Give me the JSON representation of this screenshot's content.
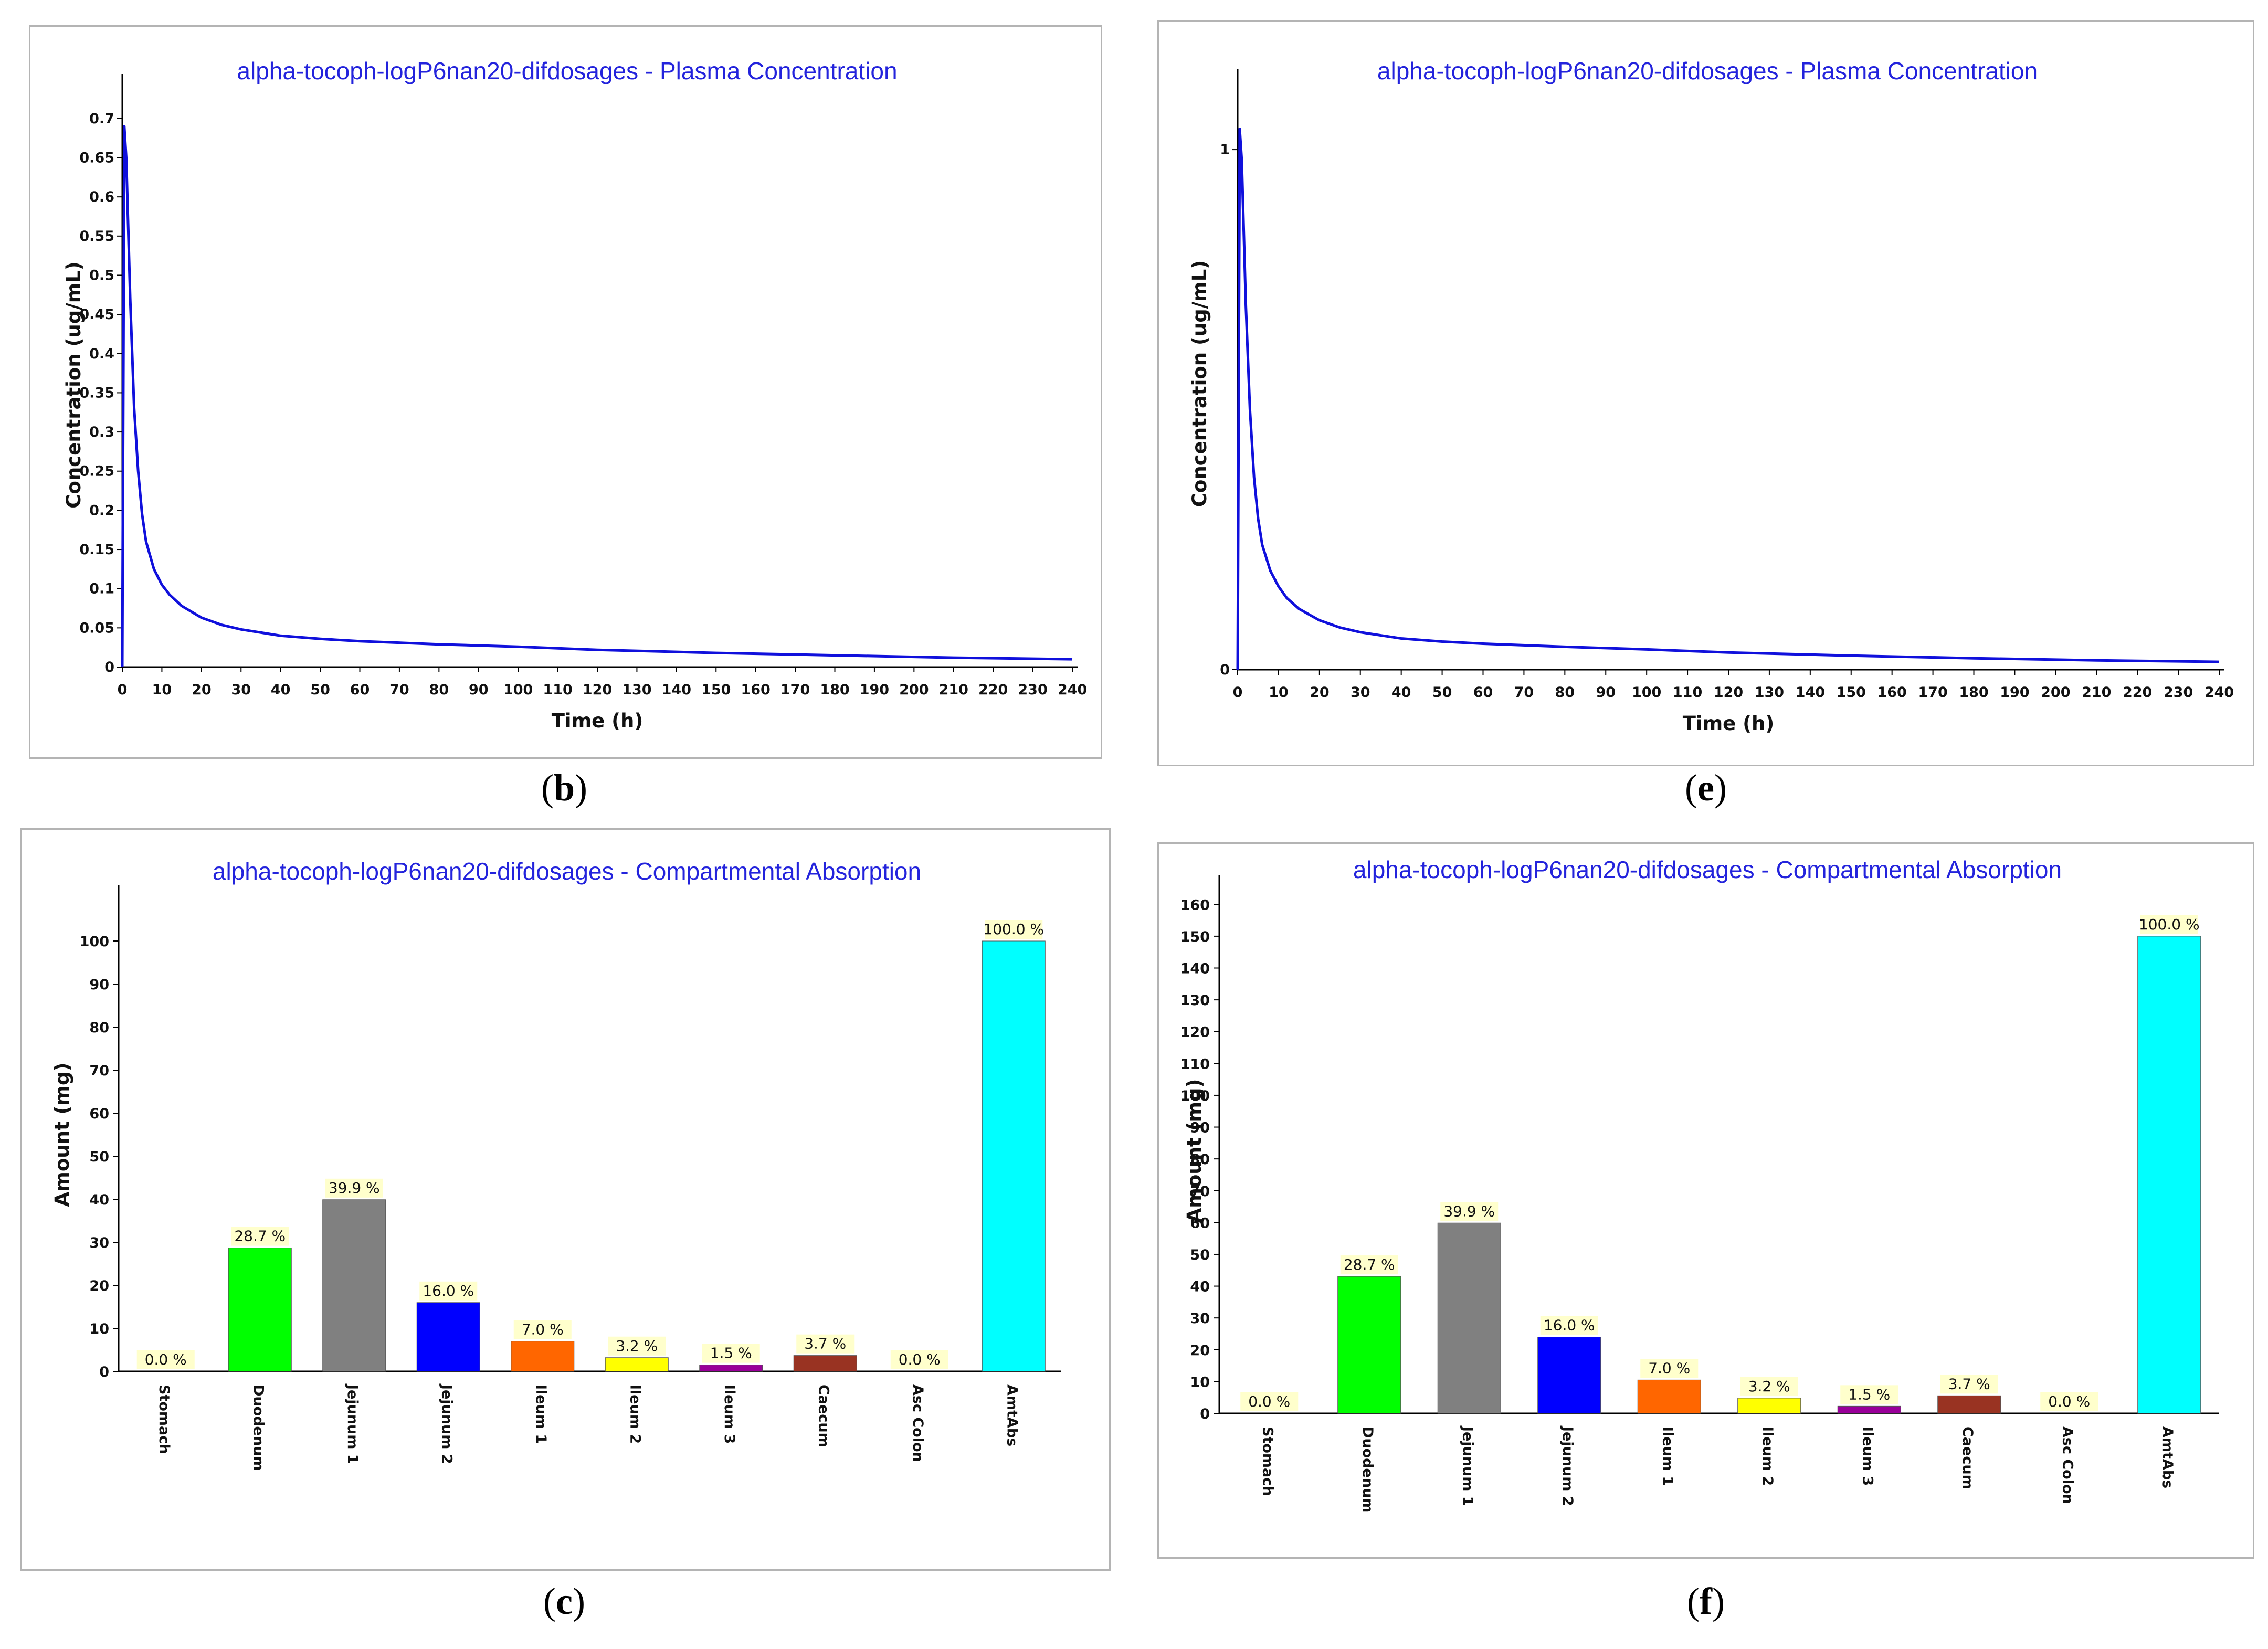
{
  "chart_data": [
    {
      "id": "b",
      "type": "line",
      "caption": "b",
      "title": "alpha-tocoph-logP6nan20-difdosages - Plasma Concentration",
      "xlabel": "Time (h)",
      "ylabel": "Concentration (ug/mL)",
      "xlim": [
        0,
        240
      ],
      "ylim": [
        0,
        0.72
      ],
      "xticks": [
        0,
        10,
        20,
        30,
        40,
        50,
        60,
        70,
        80,
        90,
        100,
        110,
        120,
        130,
        140,
        150,
        160,
        170,
        180,
        190,
        200,
        210,
        220,
        230,
        240
      ],
      "yticks": [
        0,
        0.05,
        0.1,
        0.15,
        0.2,
        0.25,
        0.3,
        0.35,
        0.4,
        0.45,
        0.5,
        0.55,
        0.6,
        0.65,
        0.7
      ],
      "series": [
        {
          "name": "Plasma Concentration",
          "color": "#1010dc",
          "x": [
            0,
            0.5,
            1,
            1.5,
            2,
            3,
            4,
            5,
            6,
            8,
            10,
            12,
            15,
            20,
            25,
            30,
            40,
            50,
            60,
            80,
            100,
            120,
            150,
            180,
            210,
            240
          ],
          "y": [
            0,
            0.69,
            0.65,
            0.56,
            0.47,
            0.33,
            0.25,
            0.195,
            0.16,
            0.125,
            0.105,
            0.092,
            0.078,
            0.063,
            0.054,
            0.048,
            0.04,
            0.036,
            0.033,
            0.029,
            0.026,
            0.022,
            0.018,
            0.015,
            0.012,
            0.01
          ]
        }
      ]
    },
    {
      "id": "e",
      "type": "line",
      "caption": "e",
      "title": "alpha-tocoph-logP6nan20-difdosages - Plasma Concentration",
      "xlabel": "Time (h)",
      "ylabel": "Concentration (ug/mL)",
      "xlim": [
        0,
        240
      ],
      "ylim": [
        0,
        1.1
      ],
      "xticks": [
        0,
        10,
        20,
        30,
        40,
        50,
        60,
        70,
        80,
        90,
        100,
        110,
        120,
        130,
        140,
        150,
        160,
        170,
        180,
        190,
        200,
        210,
        220,
        230,
        240
      ],
      "yticks": [
        0,
        1
      ],
      "series": [
        {
          "name": "Plasma Concentration",
          "color": "#1010dc",
          "x": [
            0,
            0.5,
            1,
            1.5,
            2,
            3,
            4,
            5,
            6,
            8,
            10,
            12,
            15,
            20,
            25,
            30,
            40,
            50,
            60,
            80,
            100,
            120,
            150,
            180,
            210,
            240
          ],
          "y": [
            0,
            1.04,
            0.98,
            0.84,
            0.7,
            0.5,
            0.37,
            0.29,
            0.24,
            0.19,
            0.16,
            0.138,
            0.117,
            0.095,
            0.081,
            0.072,
            0.06,
            0.054,
            0.05,
            0.044,
            0.039,
            0.033,
            0.027,
            0.022,
            0.018,
            0.015
          ]
        }
      ]
    },
    {
      "id": "c",
      "type": "bar",
      "caption": "c",
      "title": "alpha-tocoph-logP6nan20-difdosages - Compartmental Absorption",
      "xlabel": "",
      "ylabel": "Amount (mg)",
      "ylim": [
        0,
        110
      ],
      "yticks": [
        0,
        10,
        20,
        30,
        40,
        50,
        60,
        70,
        80,
        90,
        100
      ],
      "categories": [
        "Stomach",
        "Duodenum",
        "Jejunum 1",
        "Jejunum 2",
        "Ileum 1",
        "Ileum 2",
        "Ileum 3",
        "Caecum",
        "Asc Colon",
        "AmtAbs"
      ],
      "values": [
        0,
        28.7,
        39.9,
        16.0,
        7.0,
        3.2,
        1.5,
        3.7,
        0,
        100
      ],
      "labels": [
        "0.0 %",
        "28.7 %",
        "39.9 %",
        "16.0 %",
        "7.0 %",
        "3.2 %",
        "1.5 %",
        "3.7 %",
        "0.0 %",
        "100.0 %"
      ],
      "colors": [
        "#ffffff",
        "#00ff00",
        "#808080",
        "#0000ff",
        "#ff6600",
        "#ffff00",
        "#990099",
        "#993322",
        "#ffffff",
        "#00ffff"
      ]
    },
    {
      "id": "f",
      "type": "bar",
      "caption": "f",
      "title": "alpha-tocoph-logP6nan20-difdosages - Compartmental Absorption",
      "xlabel": "",
      "ylabel": "Amount (mg)",
      "ylim": [
        0,
        165
      ],
      "yticks": [
        0,
        10,
        20,
        30,
        40,
        50,
        60,
        70,
        80,
        90,
        100,
        110,
        120,
        130,
        140,
        150,
        160
      ],
      "categories": [
        "Stomach",
        "Duodenum",
        "Jejunum 1",
        "Jejunum 2",
        "Ileum 1",
        "Ileum 2",
        "Ileum 3",
        "Caecum",
        "Asc Colon",
        "AmtAbs"
      ],
      "values": [
        0,
        43.05,
        59.85,
        24.0,
        10.5,
        4.8,
        2.25,
        5.55,
        0,
        150
      ],
      "labels": [
        "0.0 %",
        "28.7 %",
        "39.9 %",
        "16.0 %",
        "7.0 %",
        "3.2 %",
        "1.5 %",
        "3.7 %",
        "0.0 %",
        "100.0 %"
      ],
      "colors": [
        "#ffffff",
        "#00ff00",
        "#808080",
        "#0000ff",
        "#ff6600",
        "#ffff00",
        "#990099",
        "#993322",
        "#ffffff",
        "#00ffff"
      ]
    }
  ]
}
